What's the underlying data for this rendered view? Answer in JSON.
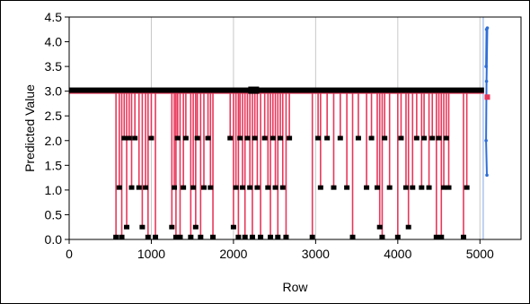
{
  "chart_data": {
    "type": "line",
    "xlabel": "Row",
    "ylabel": "Predicted Value",
    "xlim": [
      0,
      5500
    ],
    "ylim": [
      0,
      4.5
    ],
    "x_ticks": [
      "0",
      "1000",
      "2000",
      "3000",
      "4000",
      "5000"
    ],
    "y_ticks": [
      "0.0",
      "0.5",
      "1.0",
      "1.5",
      "2.0",
      "2.5",
      "3.0",
      "3.5",
      "4.0",
      "4.5"
    ],
    "grid": "vertical",
    "colors": {
      "line": "#e8375a",
      "marker": "#000000",
      "blue": "#2f6fd6",
      "ref": "#7fa6e6",
      "grid": "#c8c8c8"
    },
    "base_value": 3.02,
    "base_span": [
      0,
      5050
    ],
    "drops": [
      {
        "x": 570,
        "v": 0.05
      },
      {
        "x": 610,
        "v": 1.05
      },
      {
        "x": 640,
        "v": 0.05
      },
      {
        "x": 670,
        "v": 2.05
      },
      {
        "x": 700,
        "v": 0.25
      },
      {
        "x": 730,
        "v": 2.05
      },
      {
        "x": 760,
        "v": 1.05
      },
      {
        "x": 800,
        "v": 2.05
      },
      {
        "x": 850,
        "v": 1.05
      },
      {
        "x": 890,
        "v": 0.25
      },
      {
        "x": 930,
        "v": 1.05
      },
      {
        "x": 960,
        "v": 0.05
      },
      {
        "x": 1000,
        "v": 2.05
      },
      {
        "x": 1050,
        "v": 0.05
      },
      {
        "x": 1250,
        "v": 0.25
      },
      {
        "x": 1280,
        "v": 1.05
      },
      {
        "x": 1300,
        "v": 0.05
      },
      {
        "x": 1320,
        "v": 2.05
      },
      {
        "x": 1350,
        "v": 0.05
      },
      {
        "x": 1390,
        "v": 1.05
      },
      {
        "x": 1420,
        "v": 2.05
      },
      {
        "x": 1480,
        "v": 0.05
      },
      {
        "x": 1510,
        "v": 1.05
      },
      {
        "x": 1540,
        "v": 0.25
      },
      {
        "x": 1560,
        "v": 2.05
      },
      {
        "x": 1600,
        "v": 0.05
      },
      {
        "x": 1640,
        "v": 1.05
      },
      {
        "x": 1690,
        "v": 2.05
      },
      {
        "x": 1720,
        "v": 1.05
      },
      {
        "x": 1750,
        "v": 0.05
      },
      {
        "x": 1960,
        "v": 2.05
      },
      {
        "x": 2000,
        "v": 0.25
      },
      {
        "x": 2030,
        "v": 1.05
      },
      {
        "x": 2060,
        "v": 0.05
      },
      {
        "x": 2080,
        "v": 2.05
      },
      {
        "x": 2110,
        "v": 1.05
      },
      {
        "x": 2140,
        "v": 0.05
      },
      {
        "x": 2170,
        "v": 2.05
      },
      {
        "x": 2200,
        "v": 1.05
      },
      {
        "x": 2230,
        "v": 0.05
      },
      {
        "x": 2260,
        "v": 2.05
      },
      {
        "x": 2290,
        "v": 1.05
      },
      {
        "x": 2330,
        "v": 0.05
      },
      {
        "x": 2380,
        "v": 2.05
      },
      {
        "x": 2420,
        "v": 1.05
      },
      {
        "x": 2450,
        "v": 0.05
      },
      {
        "x": 2480,
        "v": 2.05
      },
      {
        "x": 2510,
        "v": 1.05
      },
      {
        "x": 2540,
        "v": 0.05
      },
      {
        "x": 2570,
        "v": 2.05
      },
      {
        "x": 2600,
        "v": 1.05
      },
      {
        "x": 2640,
        "v": 0.05
      },
      {
        "x": 2680,
        "v": 2.05
      },
      {
        "x": 2960,
        "v": 0.05
      },
      {
        "x": 3030,
        "v": 2.05
      },
      {
        "x": 3060,
        "v": 1.05
      },
      {
        "x": 3140,
        "v": 2.05
      },
      {
        "x": 3220,
        "v": 1.05
      },
      {
        "x": 3300,
        "v": 2.05
      },
      {
        "x": 3380,
        "v": 1.05
      },
      {
        "x": 3450,
        "v": 0.05
      },
      {
        "x": 3520,
        "v": 2.05
      },
      {
        "x": 3620,
        "v": 1.05
      },
      {
        "x": 3680,
        "v": 2.05
      },
      {
        "x": 3750,
        "v": 1.05
      },
      {
        "x": 3780,
        "v": 0.25
      },
      {
        "x": 3810,
        "v": 0.05
      },
      {
        "x": 3840,
        "v": 2.05
      },
      {
        "x": 3900,
        "v": 1.05
      },
      {
        "x": 4000,
        "v": 0.05
      },
      {
        "x": 4040,
        "v": 2.05
      },
      {
        "x": 4100,
        "v": 1.05
      },
      {
        "x": 4130,
        "v": 0.25
      },
      {
        "x": 4180,
        "v": 1.05
      },
      {
        "x": 4230,
        "v": 2.05
      },
      {
        "x": 4290,
        "v": 1.05
      },
      {
        "x": 4320,
        "v": 2.05
      },
      {
        "x": 4380,
        "v": 1.05
      },
      {
        "x": 4420,
        "v": 2.05
      },
      {
        "x": 4470,
        "v": 0.05
      },
      {
        "x": 4500,
        "v": 2.05
      },
      {
        "x": 4530,
        "v": 0.05
      },
      {
        "x": 4560,
        "v": 1.05
      },
      {
        "x": 4590,
        "v": 2.05
      },
      {
        "x": 4620,
        "v": 1.05
      },
      {
        "x": 4800,
        "v": 0.05
      },
      {
        "x": 4840,
        "v": 1.05
      }
    ],
    "blue_series": [
      {
        "x": 5075,
        "y": 3.5
      },
      {
        "x": 5080,
        "y": 4.25
      },
      {
        "x": 5090,
        "y": 4.28
      },
      {
        "x": 5080,
        "y": 3.2
      },
      {
        "x": 5075,
        "y": 2.0
      },
      {
        "x": 5085,
        "y": 1.3
      }
    ],
    "ref_lines": [
      5040
    ],
    "end_marker": {
      "x": 5090,
      "y": 2.88
    }
  }
}
